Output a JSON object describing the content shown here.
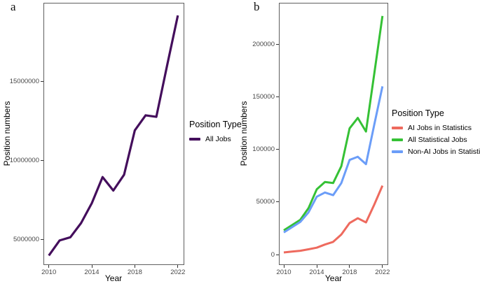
{
  "figure": {
    "background": "#ffffff",
    "panel_labels": [
      "a",
      "b"
    ],
    "border_color": "#5f5f5f",
    "tick_color": "#333333",
    "tick_label_color": "#474747"
  },
  "chart_data": [
    {
      "type": "line",
      "panel": "a",
      "title": "",
      "xlabel": "Year",
      "ylabel": "Position numbers",
      "legend_title": "Position Type",
      "legend_position": "right",
      "grid": false,
      "x": [
        2010,
        2011,
        2012,
        2013,
        2014,
        2015,
        2016,
        2017,
        2018,
        2019,
        2020,
        2021,
        2022
      ],
      "series": [
        {
          "name": "All Jobs",
          "color": "#440E5C",
          "values": [
            4000000,
            4950000,
            5150000,
            6050000,
            7300000,
            8950000,
            8100000,
            9100000,
            11900000,
            12850000,
            12750000,
            16000000,
            19150000
          ]
        }
      ],
      "xlim": [
        2009.5,
        2022.6
      ],
      "ylim": [
        3400000,
        19950000
      ],
      "x_ticks": [
        2010,
        2014,
        2018,
        2022
      ],
      "x_tick_labels": [
        "2010",
        "2014",
        "2018",
        "2022"
      ],
      "y_ticks": [
        5000000,
        10000000,
        15000000
      ],
      "y_tick_labels": [
        "5000000",
        "10000000",
        "15000000"
      ]
    },
    {
      "type": "line",
      "panel": "b",
      "title": "",
      "xlabel": "Year",
      "ylabel": "Position numbers",
      "legend_title": "Position Type",
      "legend_position": "right",
      "grid": false,
      "x": [
        2010,
        2011,
        2012,
        2013,
        2014,
        2015,
        2016,
        2017,
        2018,
        2019,
        2020,
        2021,
        2022
      ],
      "series": [
        {
          "name": "AI Jobs in Statistics",
          "color": "#EE6A5E",
          "values": [
            2000,
            2800,
            3600,
            5000,
            6500,
            9500,
            12000,
            19000,
            30000,
            34500,
            30500,
            47500,
            65500
          ]
        },
        {
          "name": "All Statistical Jobs",
          "color": "#35C135",
          "values": [
            23000,
            28000,
            33000,
            44000,
            62000,
            69000,
            68000,
            84000,
            120000,
            130000,
            117000,
            172000,
            227000
          ]
        },
        {
          "name": "Non-AI Jobs in Statistics",
          "color": "#6B9DF8",
          "values": [
            21000,
            26000,
            31000,
            40000,
            55000,
            59000,
            56500,
            68000,
            90000,
            93000,
            86000,
            123500,
            160000
          ]
        }
      ],
      "xlim": [
        2009.4,
        2022.7
      ],
      "ylim": [
        -10000,
        239500
      ],
      "x_ticks": [
        2010,
        2014,
        2018,
        2022
      ],
      "x_tick_labels": [
        "2010",
        "2014",
        "2018",
        "2022"
      ],
      "y_ticks": [
        0,
        50000,
        100000,
        150000,
        200000
      ],
      "y_tick_labels": [
        "0",
        "50000",
        "100000",
        "150000",
        "200000"
      ]
    }
  ]
}
